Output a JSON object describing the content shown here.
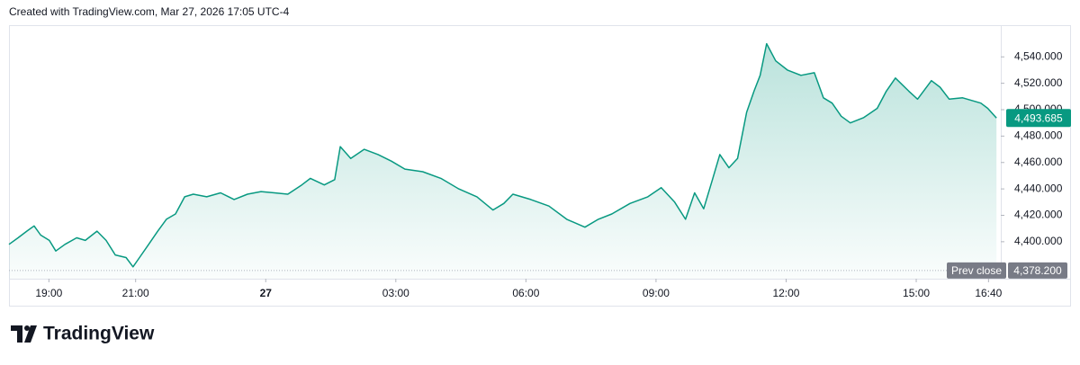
{
  "header": {
    "text": "Created with TradingView.com, Mar 27, 2026 17:05 UTC-4"
  },
  "footer": {
    "brand": "TradingView"
  },
  "chart_data": {
    "type": "area",
    "x": [
      -5.92,
      -5.71,
      -5.51,
      -5.34,
      -5.19,
      -4.99,
      -4.84,
      -4.63,
      -4.36,
      -4.16,
      -3.89,
      -3.68,
      -3.47,
      -3.22,
      -3.06,
      -2.91,
      -2.7,
      -2.49,
      -2.29,
      -2.08,
      -1.87,
      -1.67,
      -1.36,
      -1.04,
      -0.73,
      -0.42,
      -0.11,
      0.2,
      0.51,
      0.83,
      1.03,
      1.35,
      1.59,
      1.72,
      1.96,
      2.27,
      2.59,
      2.9,
      3.21,
      3.62,
      4.04,
      4.45,
      4.87,
      5.24,
      5.49,
      5.7,
      6.11,
      6.53,
      6.94,
      7.36,
      7.67,
      7.98,
      8.4,
      8.81,
      9.12,
      9.43,
      9.68,
      9.89,
      10.1,
      10.3,
      10.47,
      10.68,
      10.88,
      11.09,
      11.26,
      11.4,
      11.55,
      11.76,
      12.03,
      12.34,
      12.65,
      12.86,
      13.06,
      13.27,
      13.48,
      13.79,
      14.1,
      14.31,
      14.52,
      14.83,
      15.03,
      15.35,
      15.55,
      15.76,
      16.07,
      16.49,
      16.65,
      16.85
    ],
    "series": [
      {
        "color": "#089981",
        "last_label": "4,493.685",
        "values": [
          4398,
          4403,
          4408,
          4412,
          4405,
          4401,
          4393,
          4398,
          4403,
          4401,
          4408,
          4401,
          4390,
          4388,
          4381,
          4388,
          4398,
          4408,
          4417,
          4421,
          4434,
          4436,
          4434,
          4437,
          4432,
          4436,
          4438,
          4437,
          4436,
          4443,
          4448,
          4443,
          4447,
          4472,
          4463,
          4470,
          4466,
          4461,
          4455,
          4453,
          4448,
          4440,
          4434,
          4424,
          4429,
          4436,
          4432,
          4427,
          4417,
          4411,
          4417,
          4421,
          4429,
          4434,
          4441,
          4430,
          4417,
          4437,
          4425,
          4447,
          4466,
          4456,
          4463,
          4498,
          4514,
          4526,
          4550,
          4537,
          4530,
          4526,
          4528,
          4509,
          4505,
          4495,
          4490,
          4494,
          4501,
          4514,
          4524,
          4514,
          4508,
          4522,
          4517,
          4508,
          4509,
          4505,
          4501,
          4493.685
        ]
      }
    ],
    "prev_close": {
      "name": "Prev close",
      "value": 4378.2,
      "label": "4,378.200"
    },
    "xlim": [
      -5.92,
      16.95
    ],
    "ylim": [
      4372,
      4564
    ],
    "xticks": [
      {
        "value": -5,
        "label": "19:00"
      },
      {
        "value": -3,
        "label": "21:00"
      },
      {
        "value": 0,
        "label": "27"
      },
      {
        "value": 3,
        "label": "03:00"
      },
      {
        "value": 6,
        "label": "06:00"
      },
      {
        "value": 9,
        "label": "09:00"
      },
      {
        "value": 12,
        "label": "12:00"
      },
      {
        "value": 15,
        "label": "15:00"
      },
      {
        "value": 16.6667,
        "label": "16:40"
      }
    ],
    "yticks": [
      {
        "value": 4400,
        "label": "4,400.000"
      },
      {
        "value": 4420,
        "label": "4,420.000"
      },
      {
        "value": 4440,
        "label": "4,440.000"
      },
      {
        "value": 4460,
        "label": "4,460.000"
      },
      {
        "value": 4480,
        "label": "4,480.000"
      },
      {
        "value": 4500,
        "label": "4,500.000"
      },
      {
        "value": 4520,
        "label": "4,520.000"
      },
      {
        "value": 4540,
        "label": "4,540.000"
      }
    ],
    "grid": false
  }
}
